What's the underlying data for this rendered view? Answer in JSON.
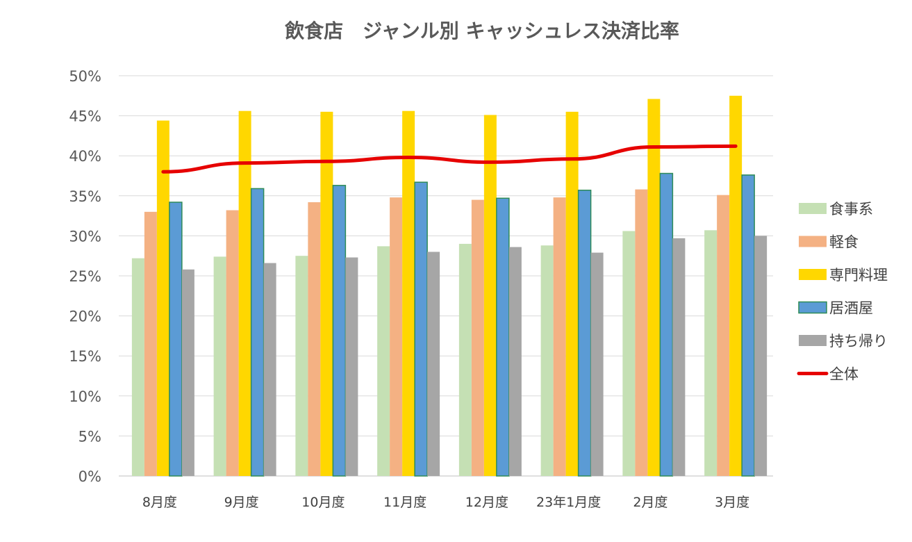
{
  "chart_data": {
    "type": "bar",
    "title": "飲食店　ジャンル別 キャッシュレス決済比率",
    "xlabel": "",
    "ylabel": "",
    "ylim": [
      0,
      50
    ],
    "yticks": [
      0,
      5,
      10,
      15,
      20,
      25,
      30,
      35,
      40,
      45,
      50
    ],
    "ytick_labels": [
      "0%",
      "5%",
      "10%",
      "15%",
      "20%",
      "25%",
      "30%",
      "35%",
      "40%",
      "45%",
      "50%"
    ],
    "grid": true,
    "legend_position": "right",
    "categories": [
      "8月度",
      "9月度",
      "10月度",
      "11月度",
      "12月度",
      "23年1月度",
      "2月度",
      "3月度"
    ],
    "series": [
      {
        "name": "食事系",
        "type": "bar",
        "color": "#c5e0b4",
        "values": [
          27.2,
          27.4,
          27.5,
          28.7,
          29.0,
          28.8,
          30.6,
          30.7
        ]
      },
      {
        "name": "軽食",
        "type": "bar",
        "color": "#f4b183",
        "values": [
          33.0,
          33.2,
          34.2,
          34.8,
          34.5,
          34.8,
          35.8,
          35.1
        ]
      },
      {
        "name": "専門料理",
        "type": "bar",
        "color": "#ffd700",
        "values": [
          44.4,
          45.6,
          45.5,
          45.6,
          45.1,
          45.5,
          47.1,
          47.5
        ]
      },
      {
        "name": "居酒屋",
        "type": "bar",
        "color": "#5b9bd5",
        "stroke": "#2e8b57",
        "values": [
          34.2,
          35.9,
          36.3,
          36.7,
          34.7,
          35.7,
          37.8,
          37.6
        ]
      },
      {
        "name": "持ち帰り",
        "type": "bar",
        "color": "#a6a6a6",
        "values": [
          25.8,
          26.6,
          27.3,
          28.0,
          28.6,
          27.9,
          29.7,
          30.0
        ]
      },
      {
        "name": "全体",
        "type": "line",
        "color": "#e60000",
        "values": [
          38.0,
          39.1,
          39.3,
          39.8,
          39.2,
          39.6,
          41.1,
          41.2
        ]
      }
    ]
  }
}
